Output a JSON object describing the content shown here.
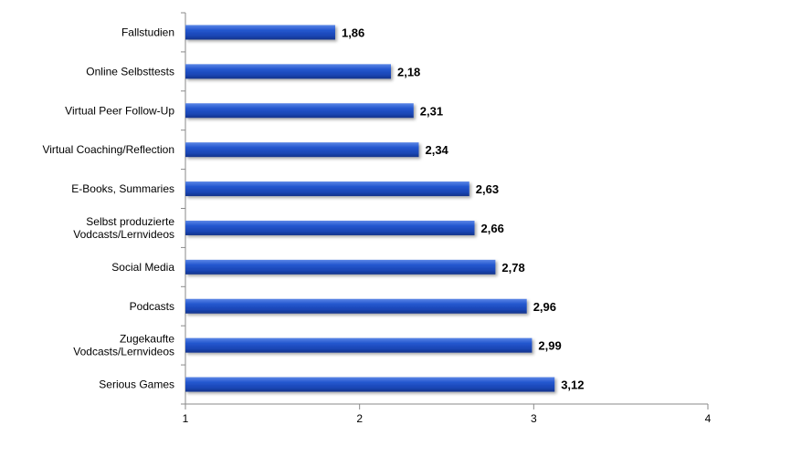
{
  "chart_data": {
    "type": "bar",
    "orientation": "horizontal",
    "title": "",
    "xlabel": "",
    "ylabel": "",
    "xlim": [
      1,
      4
    ],
    "x_ticks": [
      1,
      2,
      3,
      4
    ],
    "x_tick_labels": [
      "1",
      "2",
      "3",
      "4"
    ],
    "grid": false,
    "legend": "none",
    "bar_color": "#1f4fc0",
    "categories": [
      "Fallstudien",
      "Online Selbsttests",
      "Virtual Peer Follow-Up",
      "Virtual Coaching/Reflection",
      "E-Books, Summaries",
      "Selbst produzierte\nVodcasts/Lernvideos",
      "Social Media",
      "Podcasts",
      "Zugekaufte\nVodcasts/Lernvideos",
      "Serious Games"
    ],
    "values": [
      1.86,
      2.18,
      2.31,
      2.34,
      2.63,
      2.66,
      2.78,
      2.96,
      2.99,
      3.12
    ],
    "value_labels": [
      "1,86",
      "2,18",
      "2,31",
      "2,34",
      "2,63",
      "2,66",
      "2,78",
      "2,96",
      "2,99",
      "3,12"
    ]
  }
}
